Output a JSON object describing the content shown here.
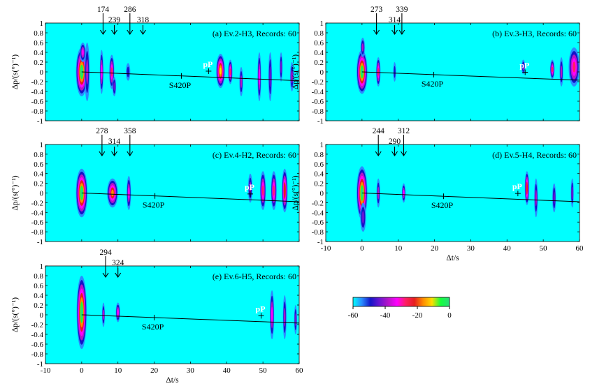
{
  "figure": {
    "ylabel": "Δp/(s(°)⁻¹)",
    "xlabel": "Δt/s",
    "background_color": "#00ffff",
    "colorbar": {
      "ticks": [
        "-60",
        "-40",
        "-20",
        "0"
      ],
      "range": [
        -60,
        0
      ],
      "colors": [
        "#00ffff",
        "#2a8cff",
        "#1414c8",
        "#6a14d2",
        "#b414c8",
        "#ff00ff",
        "#ff1e64",
        "#e61e1e",
        "#ff8c00",
        "#ffdc00",
        "#14ff3c",
        "#28dc78"
      ]
    }
  },
  "chart_data": [
    {
      "type": "heatmap",
      "id": "a",
      "title": "(a) Ev.2-H3, Records: 60",
      "xlim": [
        -10,
        60
      ],
      "ylim": [
        -1,
        1
      ],
      "xticks": [
        "-10",
        "0",
        "10",
        "20",
        "30",
        "40",
        "50",
        "60"
      ],
      "yticks": [
        "1",
        "0.8",
        "0.6",
        "0.4",
        "0.2",
        "0",
        "-0.2",
        "-0.4",
        "-0.6",
        "-0.8",
        "-1"
      ],
      "show_xticks": false,
      "show_xlabel": false,
      "depth_arrows": [
        {
          "label": "174",
          "t": 5.9
        },
        {
          "label": "239",
          "t": 9
        },
        {
          "label": "286",
          "t": 13.3
        },
        {
          "label": "318",
          "t": 16.9
        }
      ],
      "line": {
        "t0": 0,
        "p0": 0,
        "t1": 60,
        "p1": -0.18
      },
      "s420p": {
        "label": "S420P",
        "t": 27.5
      },
      "pP": {
        "label": "pP",
        "t": 35
      },
      "blobs": [
        {
          "t": 0,
          "p": 0,
          "w": 1.6,
          "h": 0.5,
          "v": 0
        },
        {
          "t": 0.3,
          "p": 0.4,
          "w": 0.8,
          "h": 0.2,
          "v": -35
        },
        {
          "t": 1.5,
          "p": 0,
          "w": 0.7,
          "h": 0.6,
          "v": -40
        },
        {
          "t": 5.5,
          "p": 0,
          "w": 0.5,
          "h": 0.45,
          "v": -35
        },
        {
          "t": 8.3,
          "p": 0,
          "w": 0.7,
          "h": 0.35,
          "v": -30
        },
        {
          "t": 9,
          "p": -0.3,
          "w": 0.5,
          "h": 0.2,
          "v": -45
        },
        {
          "t": 12.8,
          "p": 0,
          "w": 0.6,
          "h": 0.18,
          "v": -50
        },
        {
          "t": 38.3,
          "p": 0.02,
          "w": 1.2,
          "h": 0.35,
          "v": -10
        },
        {
          "t": 41,
          "p": 0,
          "w": 0.6,
          "h": 0.25,
          "v": -30
        },
        {
          "t": 44,
          "p": -0.2,
          "w": 0.5,
          "h": 0.3,
          "v": -40
        },
        {
          "t": 49,
          "p": -0.1,
          "w": 0.5,
          "h": 0.5,
          "v": -35
        },
        {
          "t": 52,
          "p": -0.1,
          "w": 0.5,
          "h": 0.5,
          "v": -45
        },
        {
          "t": 55,
          "p": 0.1,
          "w": 0.4,
          "h": 0.3,
          "v": -45
        },
        {
          "t": 58,
          "p": -0.1,
          "w": 0.5,
          "h": 0.3,
          "v": -40
        }
      ]
    },
    {
      "type": "heatmap",
      "id": "b",
      "title": "(b) Ev.3-H3, Records: 60",
      "xlim": [
        -10,
        60
      ],
      "ylim": [
        -1,
        1
      ],
      "xticks": [
        "-10",
        "0",
        "10",
        "20",
        "30",
        "40",
        "50",
        "60"
      ],
      "yticks": [
        "1",
        "0.8",
        "0.6",
        "0.4",
        "0.2",
        "0",
        "-0.2",
        "-0.4",
        "-0.6",
        "-0.8",
        "-1"
      ],
      "show_xticks": false,
      "show_xlabel": false,
      "depth_arrows": [
        {
          "label": "273",
          "t": 4
        },
        {
          "label": "314",
          "t": 9
        },
        {
          "label": "339",
          "t": 11
        }
      ],
      "line": {
        "t0": 0,
        "p0": 0,
        "t1": 60,
        "p1": -0.17
      },
      "s420p": {
        "label": "S420P",
        "t": 19.8
      },
      "pP": {
        "label": "pP",
        "t": 45
      },
      "blobs": [
        {
          "t": 0,
          "p": 0,
          "w": 1.5,
          "h": 0.45,
          "v": 0
        },
        {
          "t": 0.2,
          "p": 0.5,
          "w": 0.6,
          "h": 0.2,
          "v": -40
        },
        {
          "t": 4.5,
          "p": 0,
          "w": 0.6,
          "h": 0.3,
          "v": -30
        },
        {
          "t": 9,
          "p": 0,
          "w": 0.4,
          "h": 0.2,
          "v": -50
        },
        {
          "t": 44.5,
          "p": 0.1,
          "w": 0.5,
          "h": 0.15,
          "v": -40
        },
        {
          "t": 52.5,
          "p": 0.05,
          "w": 0.6,
          "h": 0.2,
          "v": -30
        },
        {
          "t": 55,
          "p": 0,
          "w": 0.5,
          "h": 0.3,
          "v": -40
        },
        {
          "t": 58.5,
          "p": 0.1,
          "w": 1.5,
          "h": 0.4,
          "v": -25
        }
      ]
    },
    {
      "type": "heatmap",
      "id": "c",
      "title": "(c) Ev.4-H2, Records: 60",
      "xlim": [
        -10,
        60
      ],
      "ylim": [
        -1,
        1
      ],
      "xticks": [
        "-10",
        "0",
        "10",
        "20",
        "30",
        "40",
        "50",
        "60"
      ],
      "yticks": [
        "1",
        "0.8",
        "0.6",
        "0.4",
        "0.2",
        "0",
        "-0.2",
        "-0.4",
        "-0.6",
        "-0.8",
        "-1"
      ],
      "show_xticks": false,
      "show_xlabel": false,
      "depth_arrows": [
        {
          "label": "278",
          "t": 5.6
        },
        {
          "label": "314",
          "t": 9
        },
        {
          "label": "358",
          "t": 13.3
        }
      ],
      "line": {
        "t0": 0,
        "p0": 0,
        "t1": 60,
        "p1": -0.18
      },
      "s420p": {
        "label": "S420P",
        "t": 20.2
      },
      "pP": {
        "label": "pP",
        "t": 46.5
      },
      "blobs": [
        {
          "t": 0,
          "p": 0,
          "w": 1.6,
          "h": 0.5,
          "v": 0
        },
        {
          "t": 8.5,
          "p": 0,
          "w": 1.5,
          "h": 0.3,
          "v": -15
        },
        {
          "t": 13,
          "p": 0,
          "w": 0.6,
          "h": 0.35,
          "v": -35
        },
        {
          "t": 46.5,
          "p": 0.1,
          "w": 0.6,
          "h": 0.3,
          "v": -40
        },
        {
          "t": 50,
          "p": 0.05,
          "w": 0.8,
          "h": 0.4,
          "v": -30
        },
        {
          "t": 53,
          "p": 0.05,
          "w": 0.8,
          "h": 0.4,
          "v": -30
        },
        {
          "t": 56,
          "p": 0.05,
          "w": 0.8,
          "h": 0.45,
          "v": -20
        }
      ]
    },
    {
      "type": "heatmap",
      "id": "d",
      "title": "(d) Ev.5-H4, Records: 60",
      "xlim": [
        -10,
        60
      ],
      "ylim": [
        -1,
        1
      ],
      "xticks": [
        "-10",
        "0",
        "10",
        "20",
        "30",
        "40",
        "50",
        "60"
      ],
      "yticks": [
        "1",
        "0.8",
        "0.6",
        "0.4",
        "0.2",
        "0",
        "-0.2",
        "-0.4",
        "-0.6",
        "-0.8",
        "-1"
      ],
      "show_xticks": true,
      "show_xlabel": true,
      "depth_arrows": [
        {
          "label": "244",
          "t": 4.5
        },
        {
          "label": "290",
          "t": 9
        },
        {
          "label": "312",
          "t": 11.5
        }
      ],
      "line": {
        "t0": 0,
        "p0": 0,
        "t1": 60,
        "p1": -0.18
      },
      "s420p": {
        "label": "S420P",
        "t": 22.5
      },
      "pP": {
        "label": "pP",
        "t": 43
      },
      "blobs": [
        {
          "t": 0,
          "p": 0,
          "w": 1.5,
          "h": 0.55,
          "v": 0
        },
        {
          "t": 0.3,
          "p": -0.5,
          "w": 0.8,
          "h": 0.3,
          "v": -45
        },
        {
          "t": 4.5,
          "p": 0,
          "w": 0.5,
          "h": 0.3,
          "v": -40
        },
        {
          "t": 11.5,
          "p": 0,
          "w": 0.5,
          "h": 0.2,
          "v": -35
        },
        {
          "t": 45.5,
          "p": 0.1,
          "w": 0.6,
          "h": 0.35,
          "v": -20
        },
        {
          "t": 48,
          "p": -0.1,
          "w": 0.5,
          "h": 0.4,
          "v": -40
        },
        {
          "t": 53,
          "p": -0.1,
          "w": 0.5,
          "h": 0.3,
          "v": -45
        },
        {
          "t": 58,
          "p": 0,
          "w": 0.4,
          "h": 0.3,
          "v": -45
        }
      ]
    },
    {
      "type": "heatmap",
      "id": "e",
      "title": "(e) Ev.6-H5, Records: 60",
      "xlim": [
        -10,
        60
      ],
      "ylim": [
        -1,
        1
      ],
      "xticks": [
        "-10",
        "0",
        "10",
        "20",
        "30",
        "40",
        "50",
        "60"
      ],
      "yticks": [
        "1",
        "0.8",
        "0.6",
        "0.4",
        "0.2",
        "0",
        "-0.2",
        "-0.4",
        "-0.6",
        "-0.8",
        "-1"
      ],
      "show_xticks": true,
      "show_xlabel": true,
      "depth_arrows": [
        {
          "label": "294",
          "t": 6.6
        },
        {
          "label": "324",
          "t": 10
        }
      ],
      "line": {
        "t0": 0,
        "p0": 0,
        "t1": 60,
        "p1": -0.17
      },
      "s420p": {
        "label": "S420P",
        "t": 20
      },
      "pP": {
        "label": "pP",
        "t": 49.5
      },
      "blobs": [
        {
          "t": 0,
          "p": 0.05,
          "w": 1.4,
          "h": 0.75,
          "v": 0
        },
        {
          "t": 6,
          "p": 0,
          "w": 0.4,
          "h": 0.25,
          "v": -40
        },
        {
          "t": 10,
          "p": 0.05,
          "w": 0.6,
          "h": 0.2,
          "v": -35
        },
        {
          "t": 52.5,
          "p": 0,
          "w": 0.6,
          "h": 0.5,
          "v": -35
        },
        {
          "t": 56,
          "p": -0.05,
          "w": 0.5,
          "h": 0.45,
          "v": -40
        },
        {
          "t": 59,
          "p": -0.1,
          "w": 0.4,
          "h": 0.3,
          "v": -45
        }
      ]
    }
  ]
}
